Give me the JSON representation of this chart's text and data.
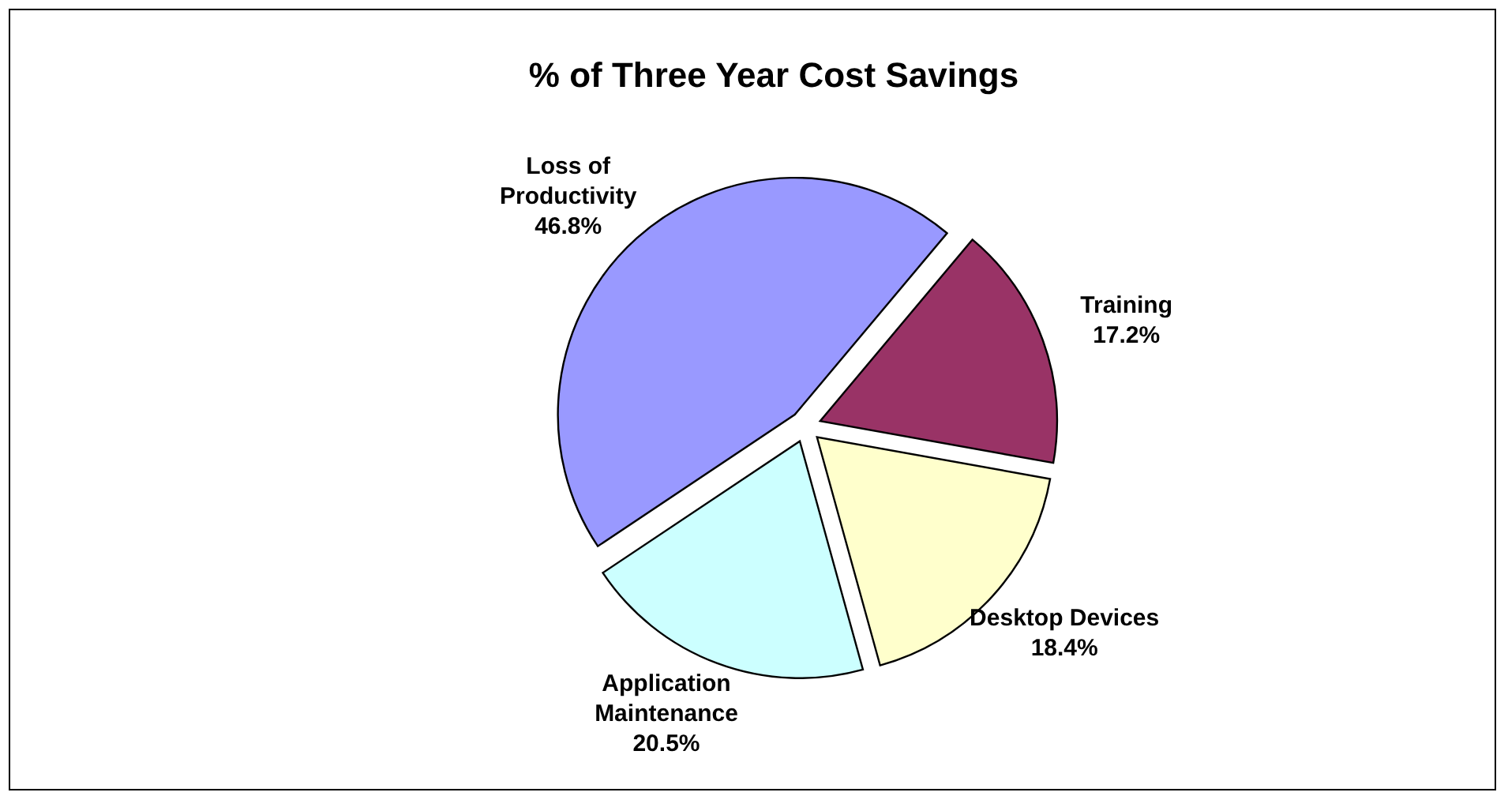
{
  "chart_data": {
    "type": "pie",
    "title": "% of Three Year Cost Savings",
    "categories": [
      "Training",
      "Desktop Devices",
      "Application Maintenance",
      "Loss of Productivity"
    ],
    "values": [
      17.2,
      18.4,
      20.5,
      46.8
    ],
    "colors": [
      "#993366",
      "#ffffcc",
      "#ccffff",
      "#9999ff"
    ],
    "value_labels": [
      "17.2%",
      "18.4%",
      "20.5%",
      "46.8%"
    ]
  }
}
